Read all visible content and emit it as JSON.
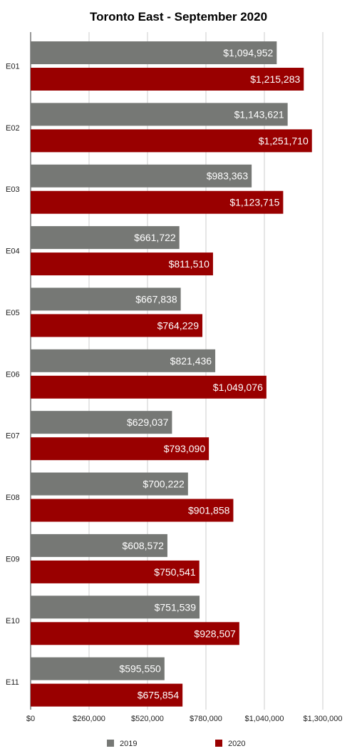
{
  "chart_data": {
    "type": "bar",
    "orientation": "horizontal",
    "title": "Toronto East - September 2020",
    "xlabel": "",
    "ylabel": "",
    "categories": [
      "E01",
      "E02",
      "E03",
      "E04",
      "E05",
      "E06",
      "E07",
      "E08",
      "E09",
      "E10",
      "E11"
    ],
    "series": [
      {
        "name": "2019",
        "color": "#767875",
        "values": [
          1094952,
          1143621,
          983363,
          661722,
          667838,
          821436,
          629037,
          700222,
          608572,
          751539,
          595550
        ],
        "labels": [
          "$1,094,952",
          "$1,143,621",
          "$983,363",
          "$661,722",
          "$667,838",
          "$821,436",
          "$629,037",
          "$700,222",
          "$608,572",
          "$751,539",
          "$595,550"
        ]
      },
      {
        "name": "2020",
        "color": "#990000",
        "values": [
          1215283,
          1251710,
          1123715,
          811510,
          764229,
          1049076,
          793090,
          901858,
          750541,
          928507,
          675854
        ],
        "labels": [
          "$1,215,283",
          "$1,251,710",
          "$1,123,715",
          "$811,510",
          "$764,229",
          "$1,049,076",
          "$793,090",
          "$901,858",
          "$750,541",
          "$928,507",
          "$675,854"
        ]
      }
    ],
    "xlim": [
      0,
      1300000
    ],
    "xticks": [
      0,
      260000,
      520000,
      780000,
      1040000,
      1300000
    ],
    "xtick_labels": [
      "$0",
      "$260,000",
      "$520,000",
      "$780,000",
      "$1,040,000",
      "$1,300,000"
    ],
    "grid": true,
    "legend_position": "bottom"
  }
}
